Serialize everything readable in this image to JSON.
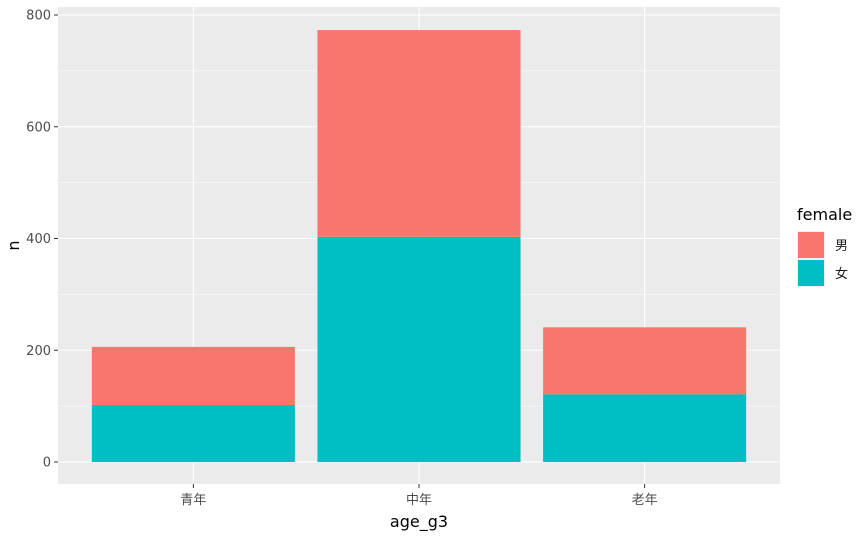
{
  "chart_data": {
    "type": "bar",
    "stacked": true,
    "categories": [
      "青年",
      "中年",
      "老年"
    ],
    "series": [
      {
        "name": "女",
        "values": [
          102,
          403,
          121
        ],
        "color": "#00BFC4"
      },
      {
        "name": "男",
        "values": [
          104,
          370,
          120
        ],
        "color": "#F8766D"
      }
    ],
    "xlabel": "age_g3",
    "ylabel": "n",
    "ylim": [
      0,
      800
    ],
    "yticks": [
      0,
      200,
      400,
      600,
      800
    ],
    "grid": true,
    "legend": {
      "title": "female",
      "position": "right",
      "items": [
        {
          "label": "男",
          "color": "#F8766D"
        },
        {
          "label": "女",
          "color": "#00BFC4"
        }
      ]
    },
    "panel_background": "#EBEBEB",
    "grid_color": "#FFFFFF"
  }
}
